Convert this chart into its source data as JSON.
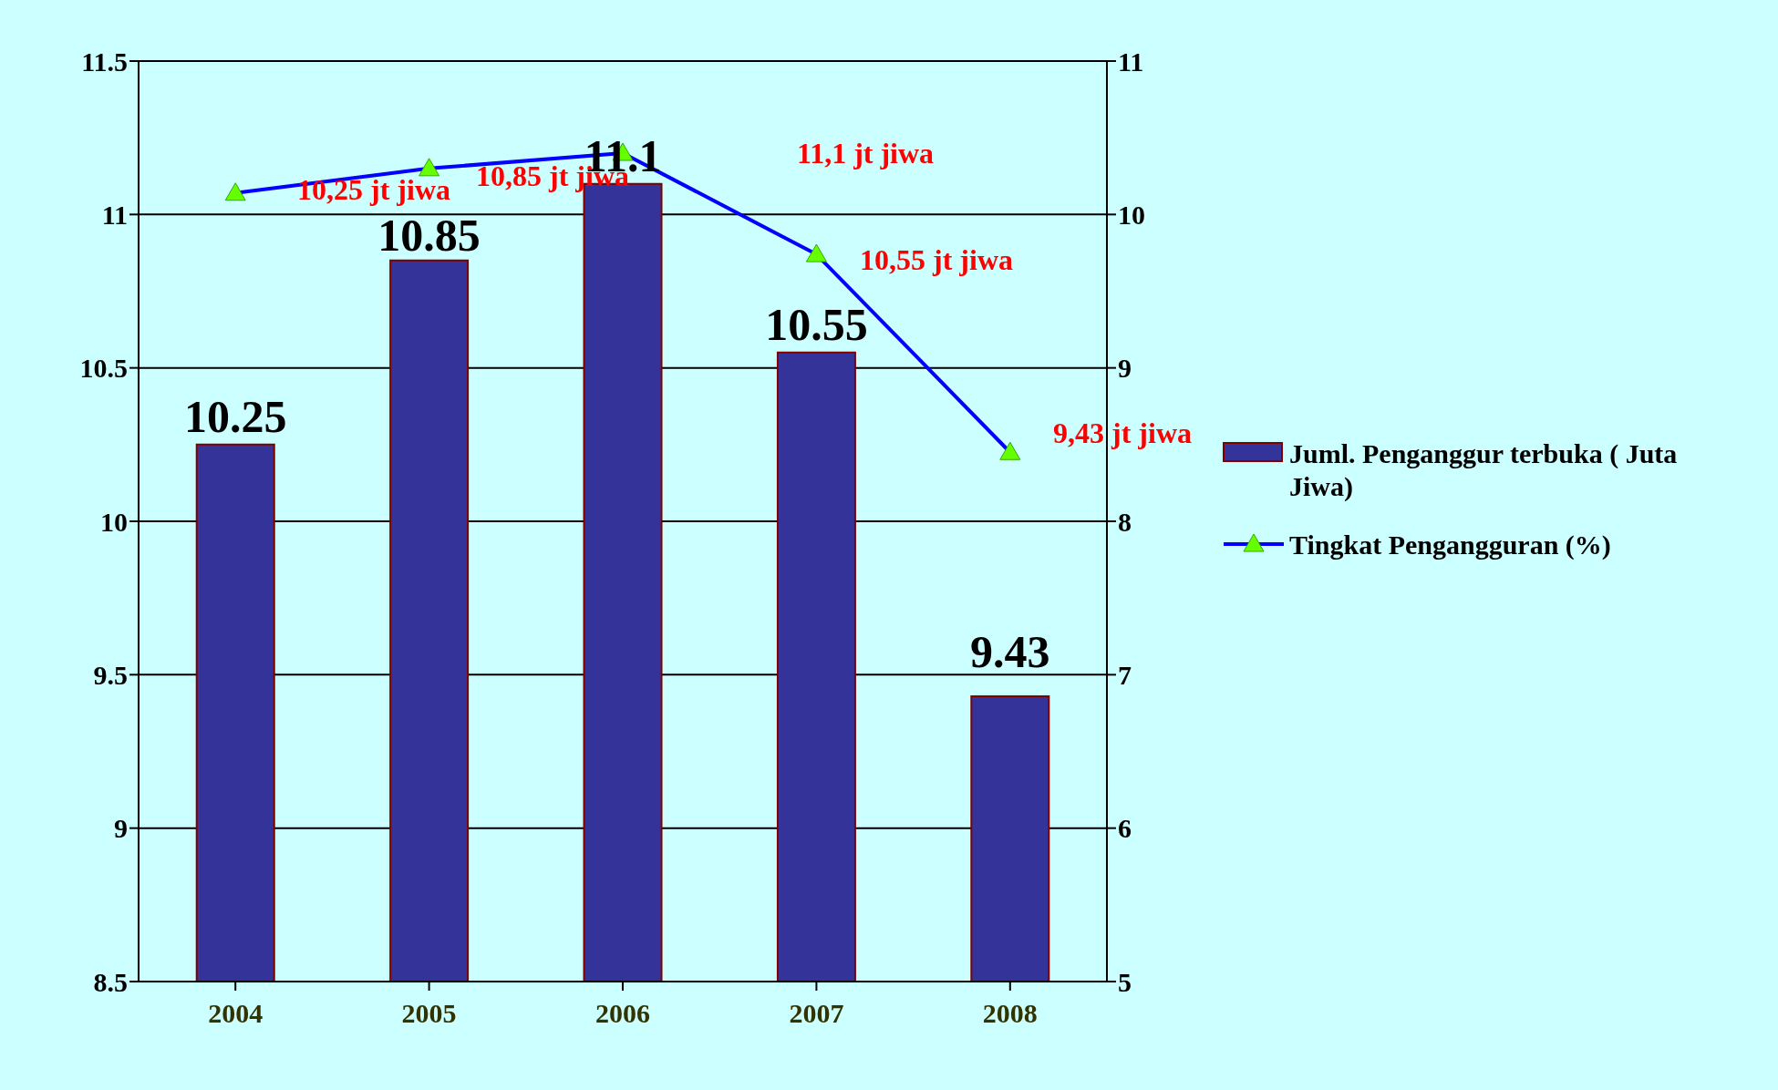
{
  "chart_data": {
    "type": "bar",
    "categories": [
      "2004",
      "2005",
      "2006",
      "2007",
      "2008"
    ],
    "series": [
      {
        "name": "Juml. Penganggur terbuka ( Juta Jiwa)",
        "color": "#333399",
        "values": [
          10.25,
          10.85,
          11.1,
          10.55,
          9.43
        ],
        "value_labels": [
          "10.25",
          "10.85",
          "11.1",
          "10.55",
          "9.43"
        ]
      },
      {
        "name": "Tingkat Pengangguran (%)",
        "type": "line",
        "axis": "y2",
        "color": "#0000ff",
        "marker": "triangle",
        "values": [
          10.14,
          10.3,
          10.4,
          9.74,
          8.45
        ]
      }
    ],
    "ylim": [
      8.5,
      11.5
    ],
    "yticks": [
      8.5,
      9,
      9.5,
      10,
      10.5,
      11,
      11.5
    ],
    "y2lim": [
      5,
      11
    ],
    "y2ticks": [
      5,
      6,
      7,
      8,
      9,
      10,
      11
    ],
    "grid": "y",
    "legend": "right",
    "annotations": [
      "10,25 jt jiwa",
      "10,85 jt jiwa",
      "11,1 jt jiwa",
      "10,55 jt jiwa",
      "9,43 jt jiwa"
    ]
  }
}
